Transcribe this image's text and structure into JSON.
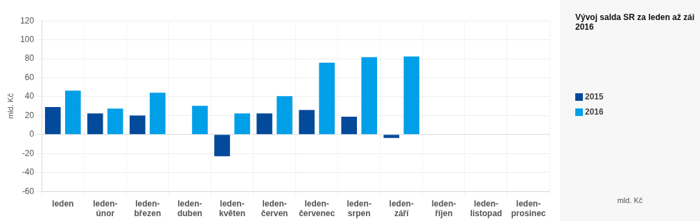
{
  "chart_data": {
    "type": "bar",
    "title": "Vývoj salda SR za leden až zái 2016",
    "ylabel": "mld. Kč",
    "categories": [
      "leden",
      "leden-únor",
      "leden-březen",
      "leden-duben",
      "leden-květen",
      "leden-červen",
      "leden-červenec",
      "leden-srpen",
      "leden-září",
      "leden-říjen",
      "leden-listopad",
      "leden-prosinec"
    ],
    "series": [
      {
        "name": "2015",
        "color": "#034a9a",
        "values": [
          29,
          22.4,
          20.2,
          null,
          -22.9,
          22.4,
          26,
          18.8,
          -3.6,
          null,
          null,
          null
        ]
      },
      {
        "name": "2016",
        "color": "#019fe8",
        "values": [
          46.3,
          27.5,
          44.1,
          30.4,
          22.4,
          40.5,
          75.9,
          81.7,
          82.4,
          null,
          null,
          null
        ]
      }
    ],
    "ylim": [
      -60,
      120
    ],
    "yticks": [
      -60,
      -40,
      -20,
      0,
      20,
      40,
      60,
      80,
      100,
      120
    ],
    "grid": true,
    "legend": "right",
    "annotations": [
      "mld. Kč"
    ]
  }
}
